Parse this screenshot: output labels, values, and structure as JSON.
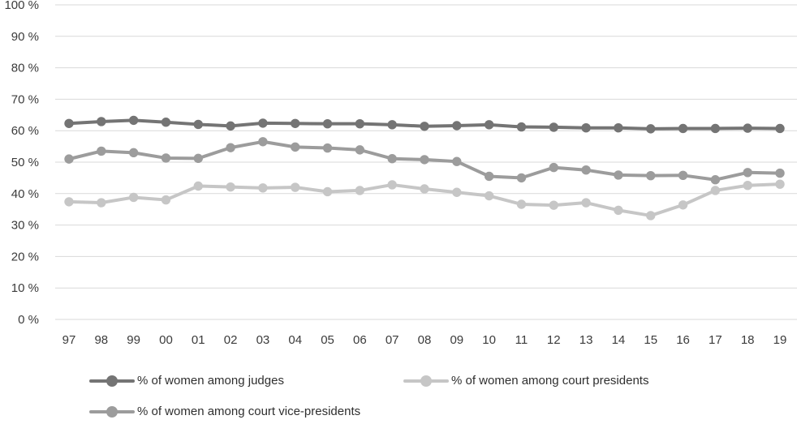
{
  "chart_data": {
    "type": "line",
    "title": "",
    "xlabel": "",
    "ylabel": "",
    "ylim": [
      0,
      100
    ],
    "ytick_step": 10,
    "grid": true,
    "legend_position": "bottom",
    "yticks": [
      "0 %",
      "10 %",
      "20 %",
      "30 %",
      "40 %",
      "50 %",
      "60 %",
      "70 %",
      "80 %",
      "90 %",
      "100 %"
    ],
    "x": [
      "97",
      "98",
      "99",
      "00",
      "01",
      "02",
      "03",
      "04",
      "05",
      "06",
      "07",
      "08",
      "09",
      "10",
      "11",
      "12",
      "13",
      "14",
      "15",
      "16",
      "17",
      "18",
      "19"
    ],
    "series": [
      {
        "name": "% of women among judges",
        "color": "#747474",
        "values": [
          62.3,
          62.9,
          63.3,
          62.7,
          62.0,
          61.5,
          62.4,
          62.3,
          62.2,
          62.2,
          61.9,
          61.4,
          61.6,
          61.9,
          61.2,
          61.1,
          60.9,
          60.9,
          60.6,
          60.7,
          60.7,
          60.8,
          60.7
        ]
      },
      {
        "name": "% of women among court presidents",
        "color": "#c6c6c6",
        "values": [
          37.4,
          37.1,
          38.8,
          38.0,
          42.4,
          42.1,
          41.8,
          42.0,
          40.6,
          41.0,
          42.8,
          41.5,
          40.4,
          39.3,
          36.6,
          36.3,
          37.1,
          34.7,
          33.0,
          36.4,
          41.0,
          42.6,
          43.0
        ]
      },
      {
        "name": "% of women among court vice-presidents",
        "color": "#9c9c9c",
        "values": [
          51.0,
          53.5,
          53.0,
          51.3,
          51.2,
          54.6,
          56.5,
          54.8,
          54.5,
          53.9,
          51.1,
          50.8,
          50.2,
          45.5,
          45.0,
          48.3,
          47.5,
          45.9,
          45.7,
          45.8,
          44.4,
          46.7,
          46.5
        ]
      }
    ],
    "axis_text_color": "#3b3b3b",
    "gridline_color": "#d9d9d9"
  }
}
